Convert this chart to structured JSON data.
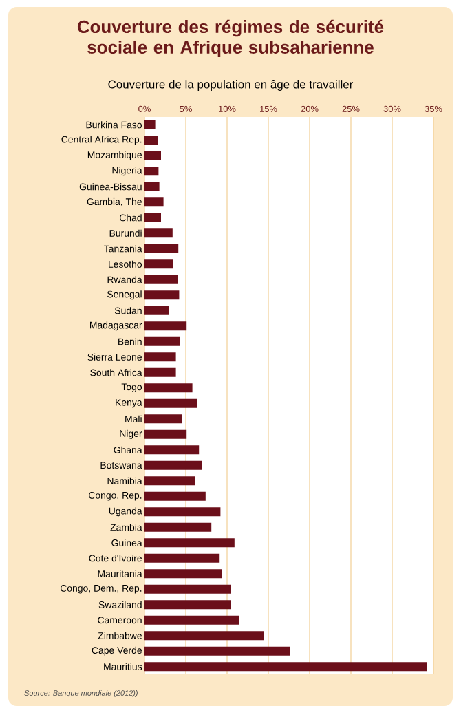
{
  "chart_data": {
    "type": "bar",
    "orientation": "horizontal",
    "title": "Couverture des régimes de sécurité sociale en Afrique subsaharienne",
    "subtitle": "Couverture de la population en âge de travailler",
    "categories": [
      "Burkina Faso",
      "Central Africa Rep.",
      "Mozambique",
      "Nigeria",
      "Guinea-Bissau",
      "Gambia, The",
      "Chad",
      "Burundi",
      "Tanzania",
      "Lesotho",
      "Rwanda",
      "Senegal",
      "Sudan",
      "Madagascar",
      "Benin",
      "Sierra Leone",
      "South Africa",
      "Togo",
      "Kenya",
      "Mali",
      "Niger",
      "Ghana",
      "Botswana",
      "Namibia",
      "Congo, Rep.",
      "Uganda",
      "Zambia",
      "Guinea",
      "Cote d'Ivoire",
      "Mauritania",
      "Congo, Dem., Rep.",
      "Swaziland",
      "Cameroon",
      "Zimbabwe",
      "Cape Verde",
      "Mauritius"
    ],
    "values": [
      1.3,
      1.6,
      2.0,
      1.7,
      1.8,
      2.3,
      2.0,
      3.4,
      4.1,
      3.5,
      4.0,
      4.2,
      3.0,
      5.1,
      4.3,
      3.8,
      3.8,
      5.8,
      6.4,
      4.5,
      5.1,
      6.6,
      7.0,
      6.1,
      7.4,
      9.2,
      8.1,
      10.9,
      9.1,
      9.4,
      10.5,
      10.5,
      11.5,
      14.5,
      17.6,
      34.2
    ],
    "color": "#6b0f1a",
    "xlim": [
      0,
      35
    ],
    "xticks": [
      {
        "value": 0,
        "label": "0%"
      },
      {
        "value": 5,
        "label": "5%"
      },
      {
        "value": 10,
        "label": "10%"
      },
      {
        "value": 15,
        "label": "15%"
      },
      {
        "value": 20,
        "label": "20%"
      },
      {
        "value": 25,
        "label": "25%"
      },
      {
        "value": 30,
        "label": "30%"
      },
      {
        "value": 35,
        "label": "35%"
      }
    ],
    "grid": "x",
    "annotations": [
      "Source: Banque mondiale (2012))"
    ]
  }
}
